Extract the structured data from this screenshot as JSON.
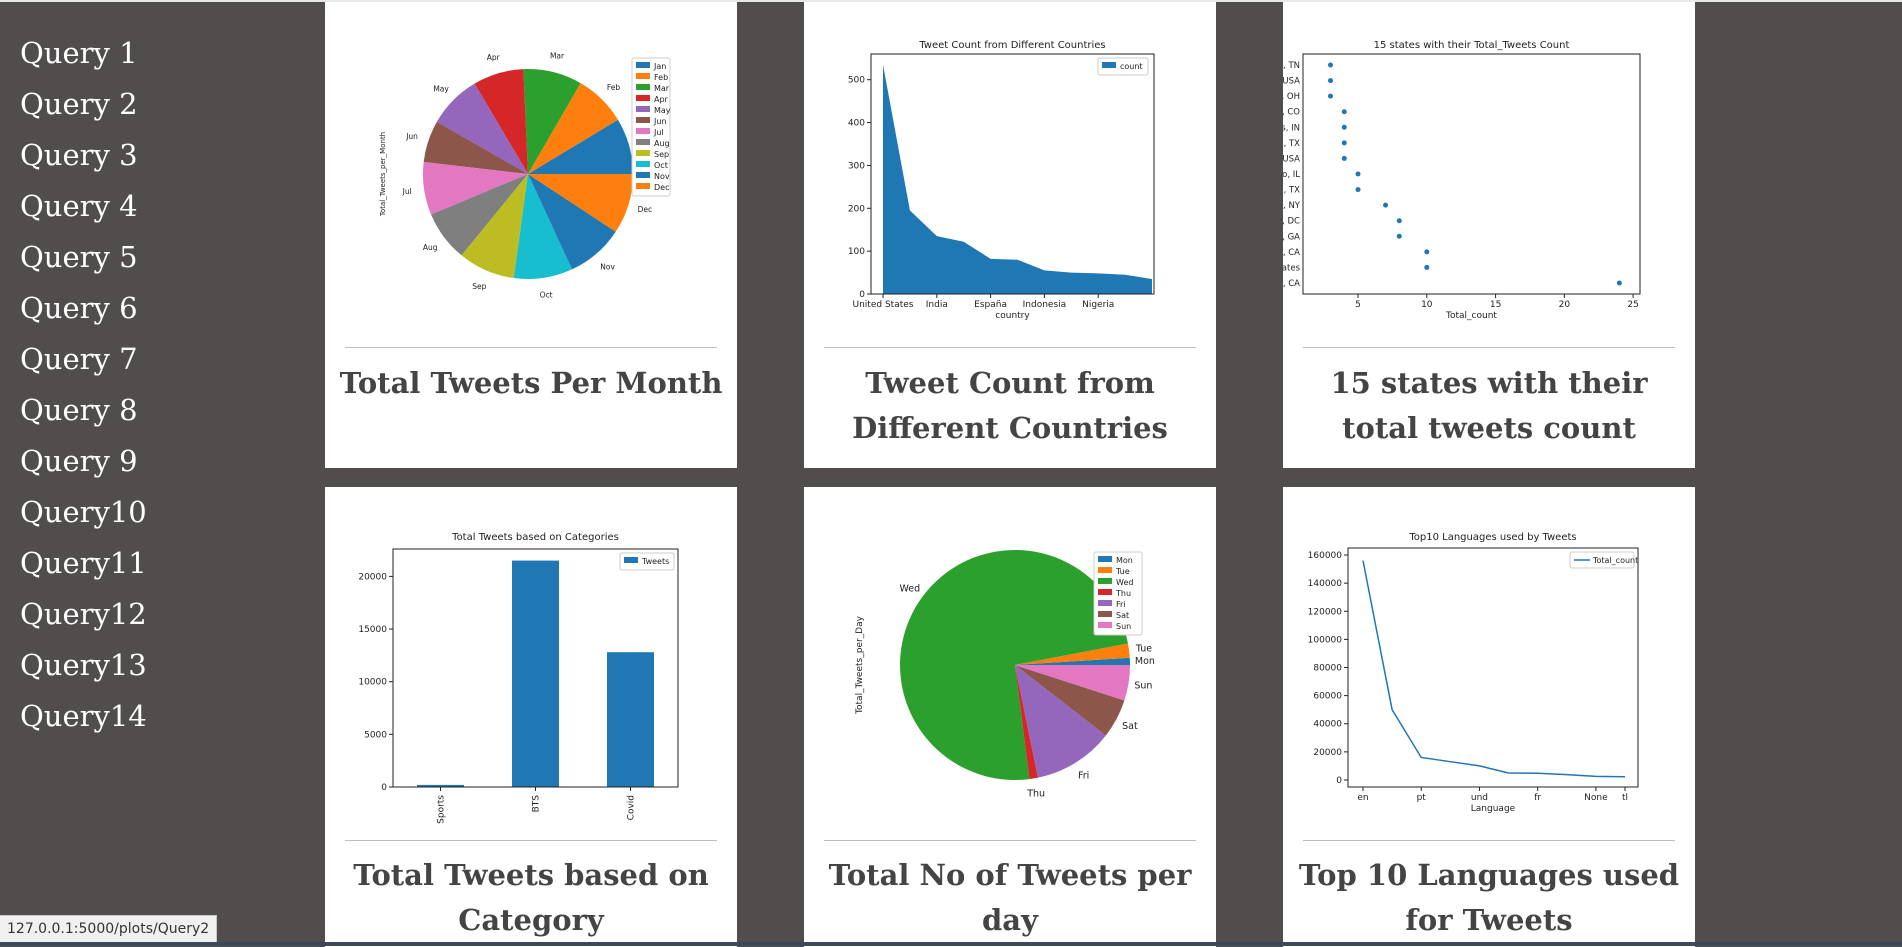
{
  "sidebar": {
    "items": [
      {
        "label": "Query 1"
      },
      {
        "label": "Query 2"
      },
      {
        "label": "Query 3"
      },
      {
        "label": "Query 4"
      },
      {
        "label": "Query 5"
      },
      {
        "label": "Query 6"
      },
      {
        "label": "Query 7"
      },
      {
        "label": "Query 8"
      },
      {
        "label": "Query 9"
      },
      {
        "label": "Query10"
      },
      {
        "label": "Query11"
      },
      {
        "label": "Query12"
      },
      {
        "label": "Query13"
      },
      {
        "label": "Query14"
      }
    ]
  },
  "cards": [
    {
      "caption": "Total Tweets Per Month"
    },
    {
      "caption": "Tweet Count from Different Countries"
    },
    {
      "caption": "15 states with their total tweets count"
    },
    {
      "caption": "Total Tweets based on Category"
    },
    {
      "caption": "Total No of Tweets per day"
    },
    {
      "caption": "Top 10 Languages used for Tweets"
    }
  ],
  "status_url": "127.0.0.1:5000/plots/Query2",
  "chart_data": [
    {
      "type": "pie",
      "title": "",
      "ylabel": "Total_Tweets_per_Month",
      "labels": [
        "Jan",
        "Feb",
        "Mar",
        "Apr",
        "May",
        "Jun",
        "Jul",
        "Aug",
        "Sep",
        "Oct",
        "Nov",
        "Dec"
      ],
      "values": [
        8.3,
        7.7,
        8.7,
        7.5,
        7.9,
        6.2,
        7.8,
        7.5,
        8.4,
        8.7,
        8.5,
        8.9
      ],
      "colors": [
        "#1f77b4",
        "#ff7f0e",
        "#2ca02c",
        "#d62728",
        "#9467bd",
        "#8c564b",
        "#e377c2",
        "#7f7f7f",
        "#bcbd22",
        "#17becf",
        "#1f77b4",
        "#ff7f0e"
      ],
      "legend": "top-right"
    },
    {
      "type": "area",
      "title": "Tweet Count from Different Countries",
      "xlabel": "country",
      "ylabel": "",
      "series": [
        {
          "name": "count",
          "values": [
            535,
            195,
            135,
            122,
            82,
            80,
            55,
            50,
            48,
            45,
            35
          ]
        }
      ],
      "xticks": [
        "United States",
        "India",
        "España",
        "Indonesia",
        "Nigeria"
      ],
      "yticks": [
        0,
        100,
        200,
        300,
        400,
        500
      ],
      "ylim": [
        0,
        560
      ],
      "color": "#1f77b4",
      "legend": "top-right"
    },
    {
      "type": "scatter",
      "title": "15 states with their Total_Tweets Count",
      "xlabel": "Total_count",
      "categories": [
        "shville, TN",
        "souri, USA",
        "eland, OH",
        "enver, CO",
        "napolis, IN",
        "Dallas, TX",
        "ornia, USA",
        "hicago, IL",
        "ouston, TX",
        "w York, NY",
        "ngton, DC",
        "tlanta, GA",
        "ngeles, CA",
        "ted States",
        "ngeles, CA"
      ],
      "values": [
        3,
        3,
        3,
        4,
        4,
        4,
        4,
        5,
        5,
        7,
        8,
        8,
        10,
        10,
        24
      ],
      "xticks": [
        5,
        10,
        15,
        20,
        25
      ],
      "xlim": [
        1,
        25.5
      ],
      "color": "#1f77b4"
    },
    {
      "type": "bar",
      "title": "Total Tweets based on Categories",
      "categories": [
        "Sports",
        "BTS",
        "Covid"
      ],
      "series": [
        {
          "name": "Tweets",
          "values": [
            200,
            21500,
            12800
          ]
        }
      ],
      "yticks": [
        0,
        5000,
        10000,
        15000,
        20000
      ],
      "ylim": [
        0,
        22600
      ],
      "color": "#1f77b4",
      "legend": "top-right"
    },
    {
      "type": "pie",
      "title": "",
      "ylabel": "Total_Tweets_per_Day",
      "labels": [
        "Mon",
        "Tue",
        "Wed",
        "Thu",
        "Fri",
        "Sat",
        "Sun"
      ],
      "values": [
        1.0,
        2.0,
        74.0,
        1.2,
        11.3,
        5.5,
        5.0
      ],
      "colors": [
        "#1f77b4",
        "#ff7f0e",
        "#2ca02c",
        "#d62728",
        "#9467bd",
        "#8c564b",
        "#e377c2"
      ],
      "legend": "top-right"
    },
    {
      "type": "line",
      "title": "Top10 Languages used by Tweets",
      "xlabel": "Language",
      "series": [
        {
          "name": "Total_count",
          "values": [
            156000,
            50000,
            16000,
            13000,
            10000,
            5000,
            4800,
            3800,
            2600,
            2300
          ]
        }
      ],
      "xticks": [
        "en",
        "pt",
        "und",
        "fr",
        "None",
        "tl"
      ],
      "yticks": [
        0,
        20000,
        40000,
        60000,
        80000,
        100000,
        120000,
        140000,
        160000
      ],
      "ylim": [
        -5000,
        165000
      ],
      "color": "#1f77b4",
      "legend": "top-right"
    }
  ]
}
